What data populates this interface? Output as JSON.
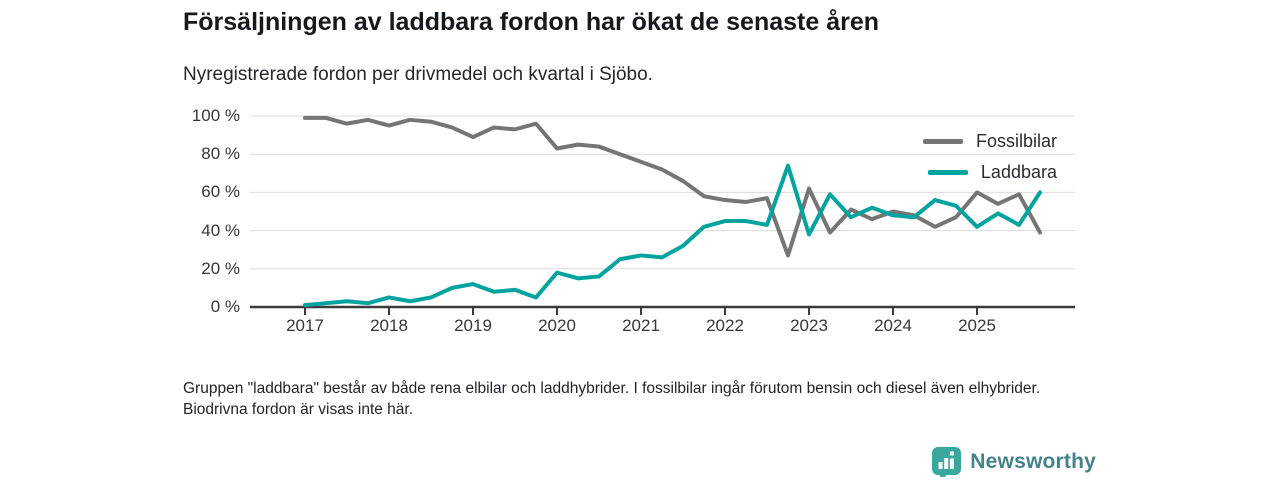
{
  "title": "Försäljningen av laddbara fordon har ökat de senaste åren",
  "subtitle": "Nyregistrerade fordon per drivmedel och kvartal i Sjöbo.",
  "footnote": "Gruppen \"laddbara\" består av både rena elbilar och laddhybrider. I fossilbilar ingår förutom bensin och diesel även elhybrider. Biodrivna fordon är visas inte här.",
  "brand": {
    "name": "Newsworthy",
    "badge_color": "#3aa79f",
    "badge_icon": "bar-chart-badge",
    "text_color": "#45838b"
  },
  "colors": {
    "grid": "#dcdcdc",
    "axis": "#3b3b3b",
    "tick_label": "#34373b"
  },
  "chart_data": {
    "type": "line",
    "unit": "%",
    "title": "Försäljningen av laddbara fordon har ökat de senaste åren",
    "subtitle": "Nyregistrerade fordon per drivmedel och kvartal i Sjöbo.",
    "xlabel": "",
    "ylabel": "",
    "ylim": [
      0,
      100
    ],
    "grid": true,
    "legend_position": "top-right",
    "y_ticks": [
      {
        "v": 0,
        "label": "0 %"
      },
      {
        "v": 20,
        "label": "20 %"
      },
      {
        "v": 40,
        "label": "40 %"
      },
      {
        "v": 60,
        "label": "60 %"
      },
      {
        "v": 80,
        "label": "80 %"
      },
      {
        "v": 100,
        "label": "100 %"
      }
    ],
    "x_tick_labels": [
      "2017",
      "2018",
      "2019",
      "2020",
      "2021",
      "2022",
      "2023",
      "2024",
      "2025"
    ],
    "x": [
      "2017Q1",
      "2017Q2",
      "2017Q3",
      "2017Q4",
      "2018Q1",
      "2018Q2",
      "2018Q3",
      "2018Q4",
      "2019Q1",
      "2019Q2",
      "2019Q3",
      "2019Q4",
      "2020Q1",
      "2020Q2",
      "2020Q3",
      "2020Q4",
      "2021Q1",
      "2021Q2",
      "2021Q3",
      "2021Q4",
      "2022Q1",
      "2022Q2",
      "2022Q3",
      "2022Q4",
      "2023Q1",
      "2023Q2",
      "2023Q3",
      "2023Q4",
      "2024Q1",
      "2024Q2",
      "2024Q3",
      "2024Q4",
      "2025Q1",
      "2025Q2",
      "2025Q3",
      "2025Q4"
    ],
    "series": [
      {
        "name": "Fossilbilar",
        "color": "#757575",
        "values": [
          99,
          99,
          96,
          98,
          95,
          98,
          97,
          94,
          89,
          94,
          93,
          96,
          83,
          85,
          84,
          80,
          76,
          72,
          66,
          58,
          56,
          55,
          57,
          27,
          62,
          39,
          51,
          46,
          50,
          48,
          42,
          47,
          60,
          54,
          59,
          39
        ]
      },
      {
        "name": "Laddbara",
        "color": "#00a39e",
        "values": [
          1,
          2,
          3,
          2,
          5,
          3,
          5,
          10,
          12,
          8,
          9,
          5,
          18,
          15,
          16,
          25,
          27,
          26,
          32,
          42,
          45,
          45,
          43,
          74,
          38,
          59,
          47,
          52,
          48,
          47,
          56,
          53,
          42,
          49,
          43,
          60
        ]
      }
    ]
  }
}
